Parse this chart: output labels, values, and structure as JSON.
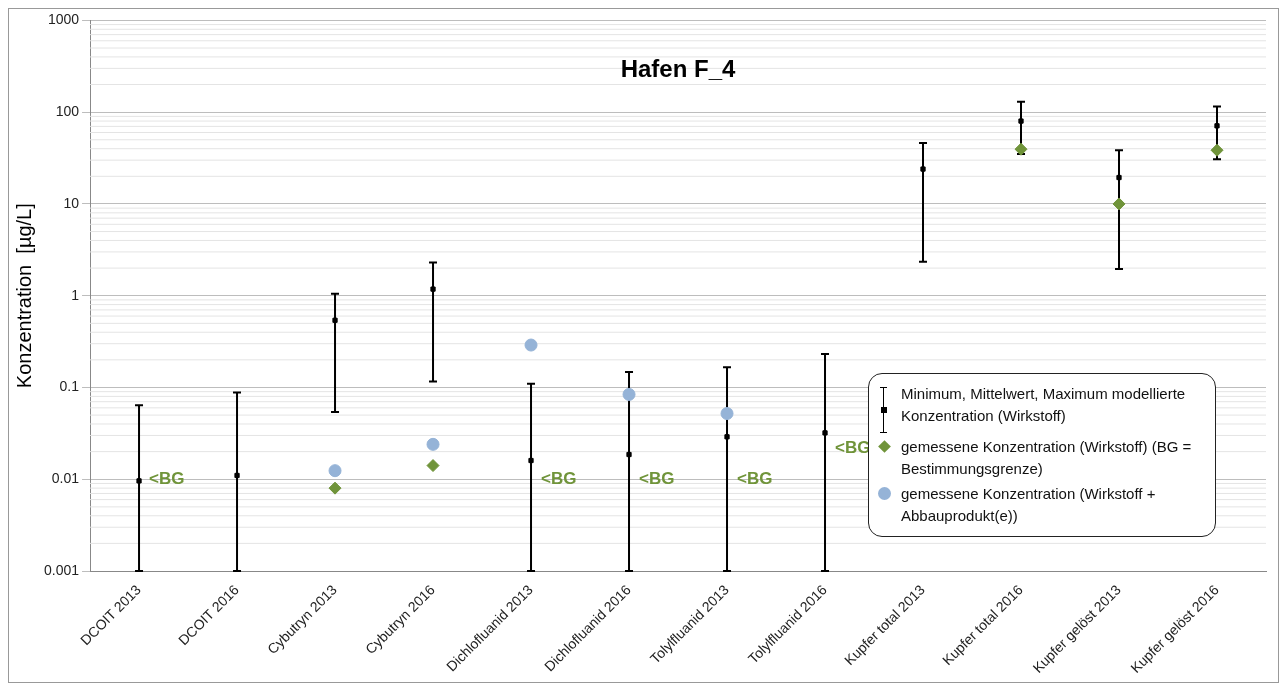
{
  "chart_data": {
    "type": "scatter",
    "title": "Hafen F_4",
    "ylabel": "Konzentration  [µg/L]",
    "categories": [
      "DCOIT 2013",
      "DCOIT 2016",
      "Cybutryn 2013",
      "Cybutryn 2016",
      "Dichlofluanid 2013",
      "Dichlofluanid 2016",
      "Tolylfluanid 2013",
      "Tolylfluanid 2016",
      "Kupfer total 2013",
      "Kupfer total 2016",
      "Kupfer gelöst 2013",
      "Kupfer gelöst 2016"
    ],
    "log": "y",
    "ylim": [
      0.001,
      1000
    ],
    "yticks": [
      0.001,
      0.01,
      0.1,
      1,
      10,
      100,
      1000
    ],
    "grid": "y",
    "legend": "bottom right",
    "series": [
      {
        "name": "Minimum, Mittelwert, Maximum modellierte Konzentration (Wirkstoff)",
        "color": "#000000",
        "marker": "square",
        "values": [
          0.0096,
          0.011,
          0.54,
          1.18,
          0.016,
          0.0186,
          0.029,
          0.032,
          24,
          80,
          19.4,
          71
        ],
        "errors": [
          [
            0.001,
            0.064
          ],
          [
            0.001,
            0.088
          ],
          [
            0.054,
            1.05
          ],
          [
            0.116,
            2.3
          ],
          [
            0.001,
            0.11
          ],
          [
            0.001,
            0.147
          ],
          [
            0.001,
            0.166
          ],
          [
            0.001,
            0.232
          ],
          [
            2.35,
            46
          ],
          [
            35,
            130
          ],
          [
            1.96,
            38.5
          ],
          [
            30.6,
            115
          ]
        ]
      },
      {
        "name": "gemessene Konzentration (Wirkstoff) (BG = Bestimmungsgrenze)",
        "color": "#70943a",
        "marker": "diamond",
        "values": [
          null,
          null,
          0.008,
          0.0141,
          null,
          null,
          null,
          null,
          null,
          39.5,
          10,
          38.5
        ]
      },
      {
        "name": "gemessene Konzentration (Wirkstoff + Abbauprodukt(e))",
        "color": "#95b3d7",
        "marker": "circle",
        "values": [
          null,
          null,
          0.0124,
          0.024,
          0.29,
          0.084,
          0.052,
          null,
          null,
          null,
          null,
          null
        ]
      }
    ],
    "annotations": [
      {
        "text": "<BG",
        "x": "DCOIT 2013",
        "y": 0.01
      },
      {
        "text": "<BG",
        "x": "Dichlofluanid 2013",
        "y": 0.01
      },
      {
        "text": "<BG",
        "x": "Dichlofluanid 2016",
        "y": 0.01
      },
      {
        "text": "<BG",
        "x": "Tolylfluanid 2013",
        "y": 0.01
      },
      {
        "text": "<BG",
        "x": "Tolylfluanid 2016",
        "y": 0.022
      }
    ]
  }
}
